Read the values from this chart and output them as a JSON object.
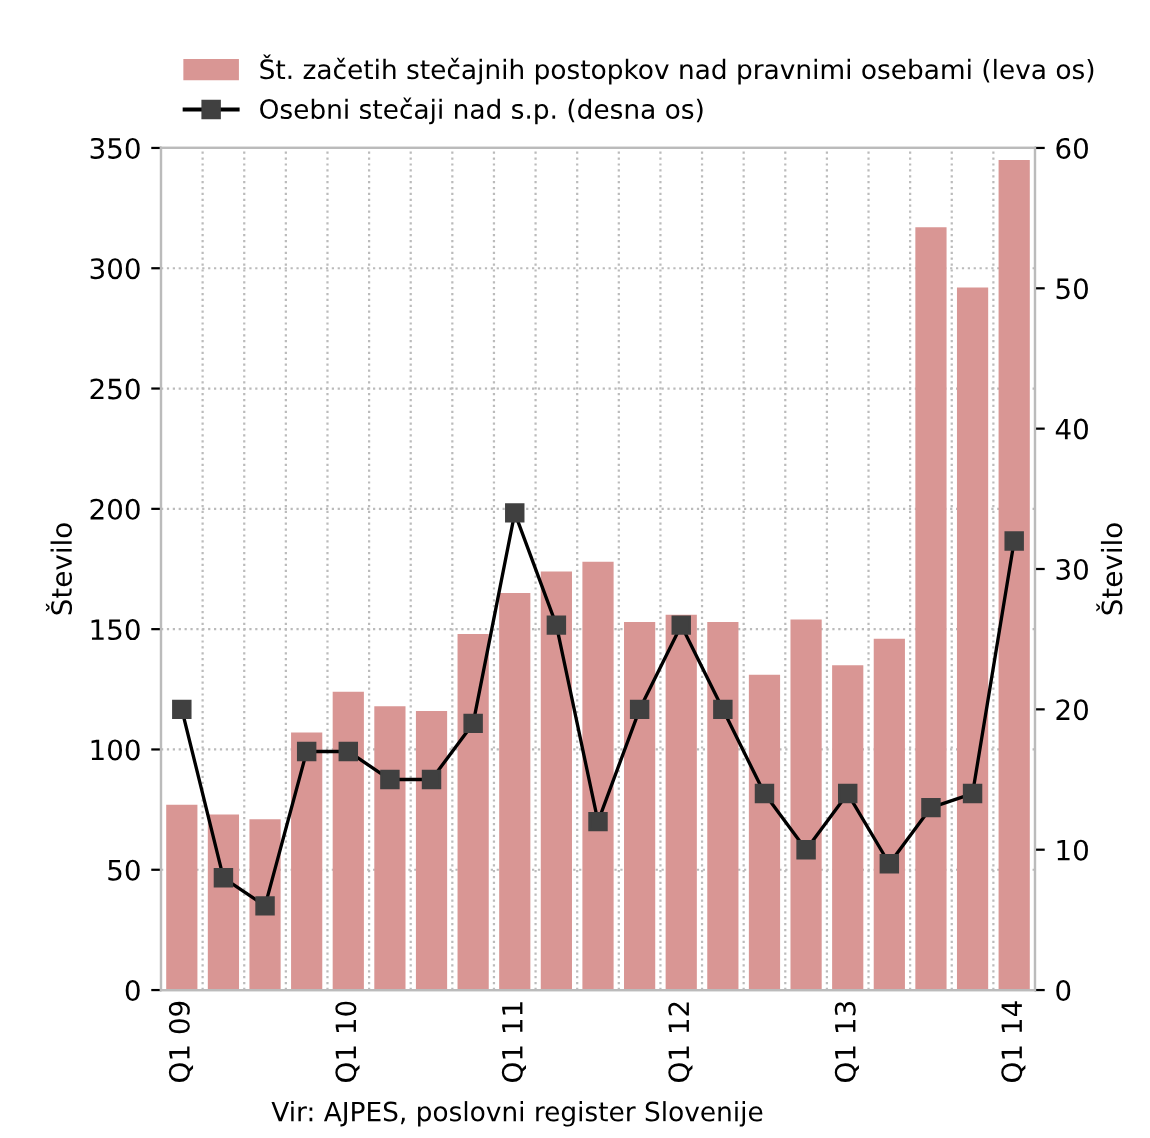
{
  "chart_data": {
    "type": "bar",
    "categories": [
      "Q1 09",
      null,
      null,
      null,
      "Q1 10",
      null,
      null,
      null,
      "Q1 11",
      null,
      null,
      null,
      "Q1 12",
      null,
      null,
      null,
      "Q1 13",
      null,
      null,
      null,
      "Q1 14"
    ],
    "series": [
      {
        "name": "Št. začetih stečajnih postopkov nad pravnimi osebami (leva os)",
        "color": "#d99694",
        "values": [
          77,
          73,
          71,
          107,
          124,
          118,
          116,
          148,
          165,
          174,
          178,
          153,
          156,
          153,
          131,
          154,
          135,
          146,
          317,
          292,
          345
        ]
      },
      {
        "name": "Osebni stečaji nad s.p. (desna os)",
        "type": "line",
        "axis": "y2",
        "color": "#000000",
        "marker": "square",
        "values": [
          20,
          8,
          6,
          17,
          17,
          15,
          15,
          19,
          34,
          26,
          12,
          20,
          26,
          20,
          14,
          10,
          14,
          9,
          13,
          14,
          32
        ]
      }
    ],
    "ylabel": "Število",
    "y2label": "Število",
    "ylim": [
      0,
      350
    ],
    "yticks": [
      0,
      50,
      100,
      150,
      200,
      250,
      300,
      350
    ],
    "y2lim": [
      0,
      60
    ],
    "y2ticks": [
      0,
      10,
      20,
      30,
      40,
      50,
      60
    ],
    "grid": true,
    "legend": "top",
    "annotations": [
      "Vir: AJPES, poslovni register Slovenije"
    ]
  }
}
